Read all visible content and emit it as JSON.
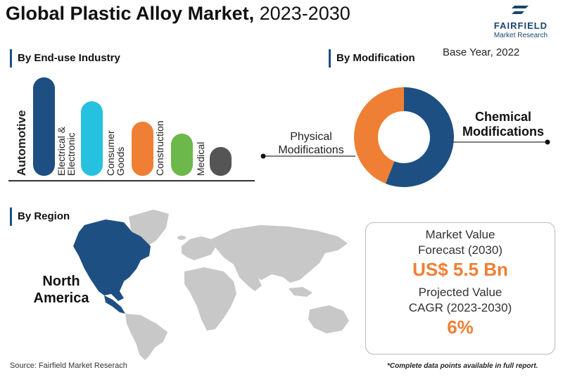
{
  "title": {
    "main": "Global Plastic Alloy Market,",
    "years": "2023-2030"
  },
  "logo": {
    "brand": "FAIRFIELD",
    "sub": "Market Research"
  },
  "base_year": "Base Year, 2022",
  "colors": {
    "navy": "#1e4f82",
    "orange": "#ef7f34",
    "cyan": "#26c1df",
    "green": "#6cb84a",
    "gray": "#555555",
    "map_gray": "#c8c8c8"
  },
  "sections": {
    "industry": "By End-use Industry",
    "modification": "By Modification",
    "region": "By Region"
  },
  "chart_data": [
    {
      "type": "bar",
      "title": "By End-use Industry",
      "categories": [
        "Automotive",
        "Electrical & Electronic",
        "Consumer Goods",
        "Construction",
        "Medical",
        ""
      ],
      "category_labels": [
        [
          "Automotive"
        ],
        [
          "Electrical &",
          "Electronic"
        ],
        [
          "Consumer",
          "Goods"
        ],
        [
          "Construction"
        ],
        [
          "Medical"
        ],
        []
      ],
      "highlight": "Automotive",
      "values": [
        100,
        76,
        55,
        44,
        43,
        29
      ],
      "colors": [
        "#1e4f82",
        "#26c1df",
        "#ef7f34",
        "#6cb84a",
        "#555555"
      ]
    },
    {
      "type": "pie",
      "title": "By Modification",
      "donut": true,
      "labels": [
        "Chemical Modifications",
        "Physical Modifications"
      ],
      "values": [
        56,
        44
      ],
      "colors": [
        "#1e4f82",
        "#ef7f34"
      ]
    }
  ],
  "region": {
    "highlight": "North America",
    "label_lines": [
      "North",
      "America"
    ]
  },
  "kpi": {
    "market_value_label_lines": [
      "Market Value",
      "Forecast (2030)"
    ],
    "market_value": "US$ 5.5 Bn",
    "cagr_label_lines": [
      "Projected Value",
      "CAGR (2023-2030)"
    ],
    "cagr": "6%"
  },
  "source": "Source: Fairfield Market Reserach",
  "footnote": "*Complete data points available in full report."
}
